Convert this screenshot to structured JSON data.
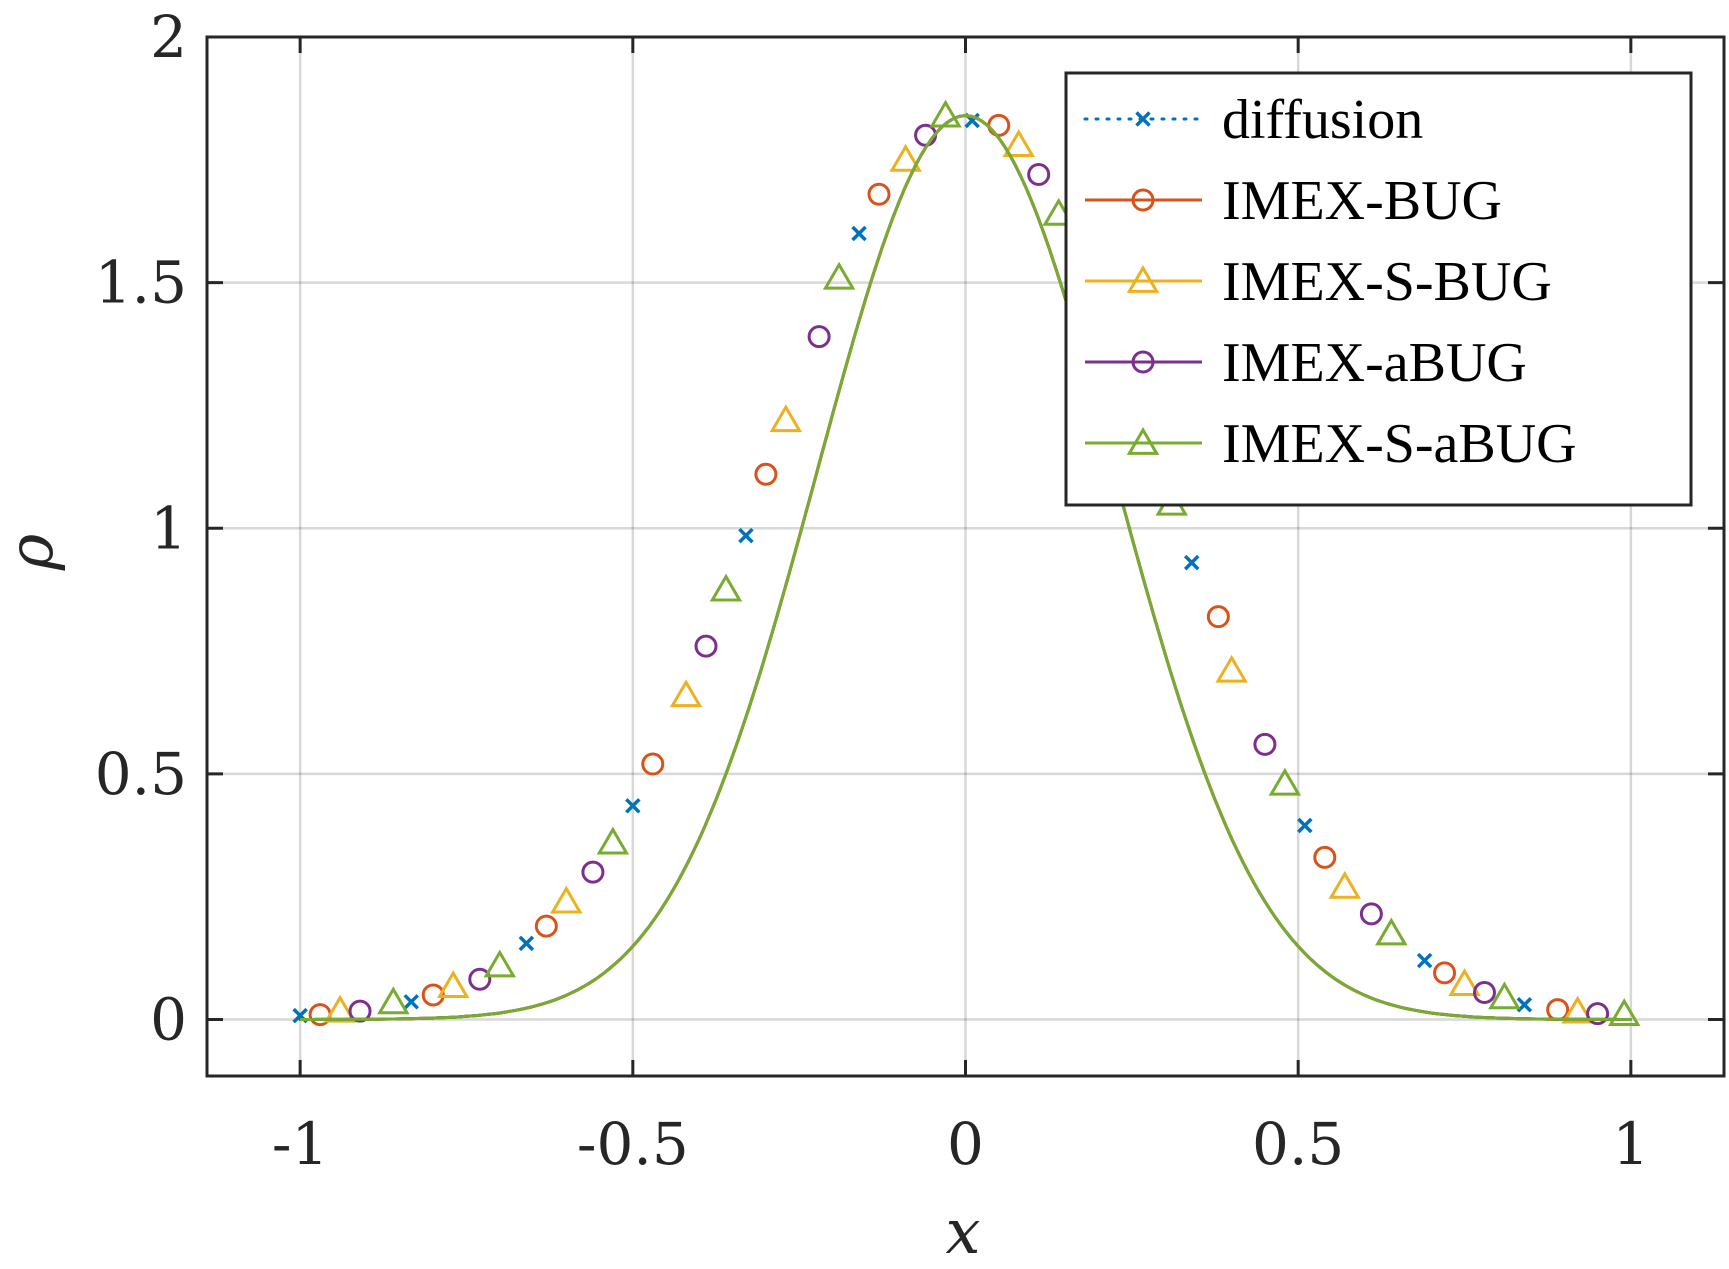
{
  "chart_data": {
    "type": "line",
    "title": "",
    "xlabel": "x",
    "ylabel": "ρ",
    "xlim": [
      -1.14,
      1.14
    ],
    "ylim": [
      -0.115,
      2
    ],
    "grid": true,
    "legend_position": "top-right",
    "x_ticks": [
      -1,
      -0.5,
      0,
      0.5,
      1
    ],
    "x_tick_labels": [
      "-1",
      "-0.5",
      "0",
      "0.5",
      "1"
    ],
    "y_ticks": [
      0,
      0.5,
      1,
      1.5,
      2
    ],
    "y_tick_labels": [
      "0",
      "0.5",
      "1",
      "1.5",
      "2"
    ],
    "series": [
      {
        "name": "diffusion",
        "color": "#0072bd",
        "line_style": "dotted",
        "marker": "x",
        "x": [
          -1.0,
          -0.833,
          -0.66,
          -0.5,
          -0.33,
          -0.16,
          0.01,
          0.34,
          0.51,
          0.69,
          0.84
        ],
        "y": [
          0.008,
          0.036,
          0.155,
          0.435,
          0.985,
          1.6,
          1.83,
          0.93,
          0.395,
          0.12,
          0.03
        ]
      },
      {
        "name": "IMEX-BUG",
        "color": "#d95319",
        "line_style": "solid",
        "marker": "circle",
        "x": [
          -0.97,
          -0.8,
          -0.63,
          -0.47,
          -0.3,
          -0.13,
          0.05,
          0.38,
          0.54,
          0.72,
          0.89
        ],
        "y": [
          0.01,
          0.05,
          0.19,
          0.52,
          1.11,
          1.68,
          1.82,
          0.82,
          0.33,
          0.095,
          0.02
        ]
      },
      {
        "name": "IMEX-S-BUG",
        "color": "#edb120",
        "line_style": "solid",
        "marker": "triangle",
        "x": [
          -0.94,
          -0.77,
          -0.6,
          -0.42,
          -0.27,
          -0.09,
          0.08,
          0.4,
          0.57,
          0.75,
          0.92
        ],
        "y": [
          0.018,
          0.068,
          0.24,
          0.66,
          1.22,
          1.75,
          1.78,
          0.71,
          0.27,
          0.072,
          0.016
        ]
      },
      {
        "name": "IMEX-aBUG",
        "color": "#7e2f8e",
        "line_style": "solid",
        "marker": "circle",
        "x": [
          -0.91,
          -0.73,
          -0.56,
          -0.39,
          -0.22,
          -0.06,
          0.11,
          0.45,
          0.61,
          0.78,
          0.95
        ],
        "y": [
          0.017,
          0.082,
          0.3,
          0.76,
          1.39,
          1.8,
          1.72,
          0.56,
          0.215,
          0.055,
          0.012
        ]
      },
      {
        "name": "IMEX-S-aBUG",
        "color": "#77ac30",
        "line_style": "solid",
        "marker": "triangle",
        "x": [
          -0.86,
          -0.7,
          -0.53,
          -0.36,
          -0.19,
          -0.03,
          0.14,
          0.31,
          0.48,
          0.64,
          0.81,
          0.99
        ],
        "y": [
          0.035,
          0.11,
          0.36,
          0.875,
          1.51,
          1.84,
          1.64,
          1.05,
          0.48,
          0.175,
          0.045,
          0.011
        ]
      }
    ]
  }
}
